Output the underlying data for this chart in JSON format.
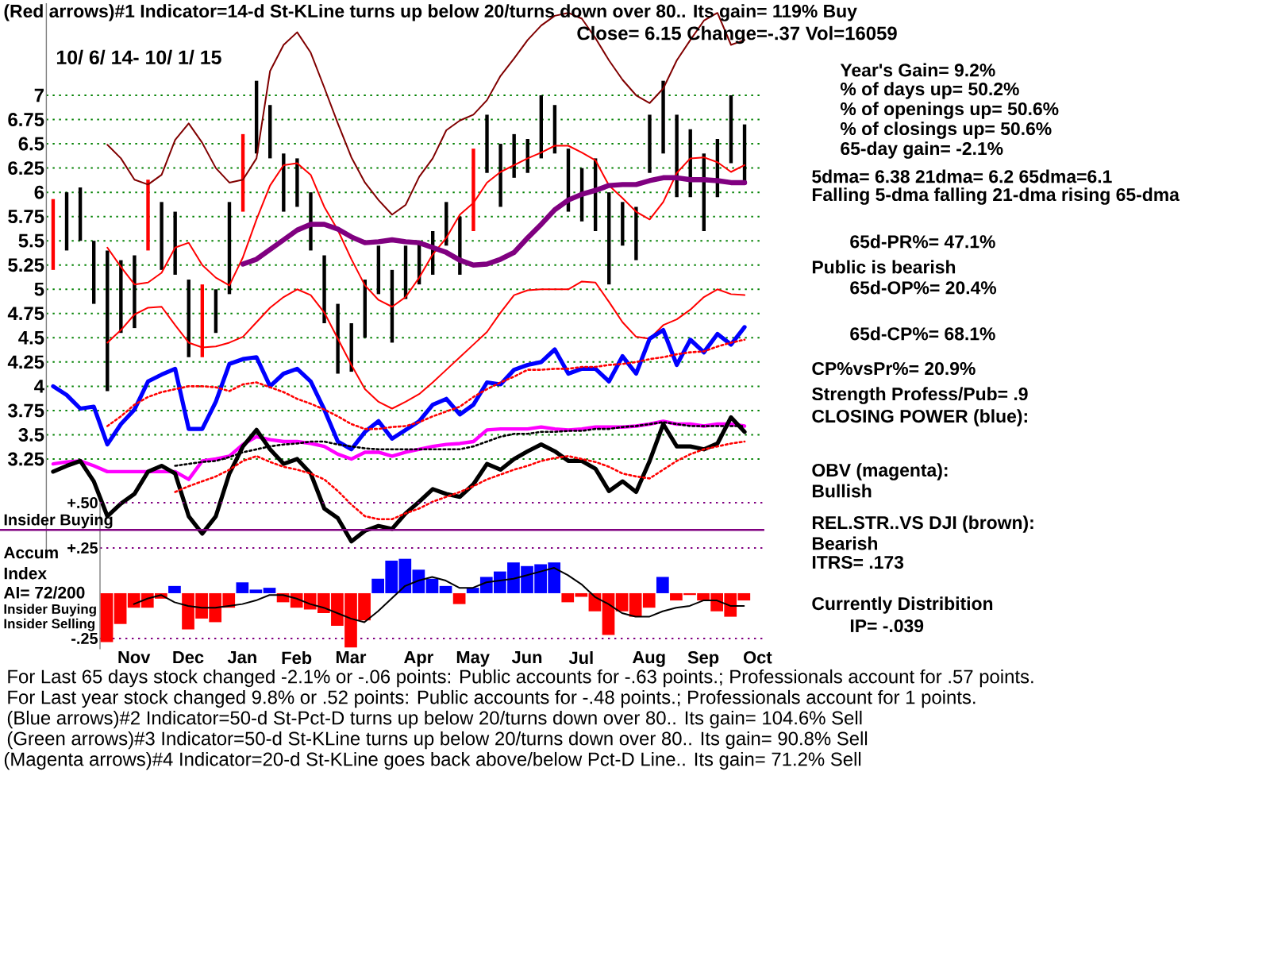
{
  "chart_data": [
    {
      "type": "bar",
      "title": "Close= 6.15 Change=-.37 Vol=16059",
      "subtitle": "10/ 6/ 14- 10/ 1/ 15",
      "categories": [
        null,
        null,
        null,
        null,
        null,
        null,
        null,
        null,
        null,
        null,
        null,
        null,
        null,
        null,
        null,
        null,
        null,
        null,
        null,
        null,
        null,
        null,
        null,
        null,
        null,
        null,
        null,
        null,
        null,
        null,
        null,
        null,
        null,
        null,
        null,
        null,
        null,
        null,
        null,
        null,
        null,
        null,
        null,
        null,
        null,
        null,
        null,
        null,
        null,
        null,
        null,
        null
      ],
      "ylim": [
        2.3,
        7.95
      ],
      "yticks": [
        7,
        6.75,
        6.5,
        6.25,
        6,
        5.75,
        5.5,
        5.25,
        5,
        4.75,
        4.5,
        4.25,
        4,
        3.75,
        3.5,
        3.25
      ],
      "grid": "y",
      "tick_labels": "y",
      "series": [
        {
          "colors": [
            "#ff0000",
            "#000000",
            "#000000",
            "#000000",
            "#000000",
            "#000000",
            "#000000",
            "#ff0000",
            "#000000",
            "#000000",
            "#000000",
            "#ff0000",
            "#000000",
            "#000000",
            "#ff0000",
            "#000000",
            "#000000",
            "#000000",
            "#000000",
            "#000000",
            "#000000",
            "#000000",
            "#000000",
            "#000000",
            "#000000",
            "#000000",
            "#000000",
            "#000000",
            "#000000",
            "#000000",
            "#000000",
            "#ff0000",
            "#000000",
            "#000000",
            "#000000",
            "#000000",
            "#000000",
            "#000000",
            "#000000",
            "#000000",
            "#000000",
            "#000000",
            "#000000",
            "#000000",
            "#000000",
            "#000000",
            "#000000",
            "#000000",
            "#000000",
            "#000000",
            "#000000",
            "#000000"
          ],
          "base": [
            5.2,
            5.4,
            5.5,
            4.85,
            3.95,
            4.55,
            4.6,
            5.4,
            5.2,
            5.15,
            4.3,
            4.3,
            4.55,
            4.95,
            5.8,
            6.4,
            6.35,
            5.8,
            5.85,
            5.4,
            4.65,
            4.13,
            4.15,
            4.5,
            4.95,
            4.45,
            4.9,
            5.05,
            5.15,
            5.45,
            5.15,
            5.6,
            6.2,
            5.85,
            6.15,
            6.2,
            6.35,
            6.4,
            5.8,
            5.7,
            5.6,
            5.05,
            5.45,
            5.3,
            6.2,
            6.4,
            5.95,
            5.95,
            5.6,
            5.95,
            6.3,
            6.1
          ],
          "values": [
            0.73,
            0.6,
            0.55,
            0.65,
            1.45,
            0.75,
            0.75,
            0.73,
            0.7,
            0.65,
            0.8,
            0.75,
            0.45,
            0.95,
            0.8,
            0.75,
            0.55,
            0.6,
            0.5,
            0.6,
            0.7,
            0.72,
            0.5,
            0.6,
            0.5,
            0.75,
            0.55,
            0.45,
            0.45,
            0.45,
            0.6,
            0.85,
            0.6,
            0.65,
            0.45,
            0.35,
            0.65,
            0.5,
            0.65,
            0.55,
            0.75,
            0.95,
            0.45,
            0.55,
            0.6,
            0.75,
            0.85,
            0.7,
            0.8,
            0.6,
            0.7,
            0.6
          ]
        },
        {
          "type": "line",
          "color": "#800000",
          "values": [
            null,
            null,
            null,
            null,
            6.49,
            6.35,
            6.13,
            6.08,
            6.18,
            6.54,
            6.71,
            6.51,
            6.25,
            6.1,
            6.13,
            6.35,
            7.25,
            7.52,
            7.65,
            7.44,
            7.08,
            6.71,
            6.36,
            6.1,
            5.92,
            5.77,
            5.87,
            6.16,
            6.35,
            6.64,
            6.74,
            6.8,
            6.95,
            7.2,
            7.38,
            7.57,
            7.72,
            7.82,
            7.85,
            7.79,
            7.59,
            7.36,
            7.16,
            7.0,
            6.92,
            7.07,
            7.36,
            7.57,
            7.77,
            7.85,
            7.52,
            7.57
          ]
        },
        {
          "type": "line",
          "color": "#ff0000",
          "values": [
            null,
            null,
            null,
            null,
            5.43,
            5.23,
            5.05,
            5.07,
            5.17,
            5.43,
            5.48,
            5.25,
            5.12,
            5.04,
            5.33,
            5.72,
            6.07,
            6.28,
            6.3,
            6.18,
            5.85,
            5.61,
            5.31,
            5.04,
            4.89,
            4.82,
            4.92,
            5.12,
            5.36,
            5.53,
            5.77,
            5.89,
            6.1,
            6.21,
            6.28,
            6.35,
            6.41,
            6.48,
            6.48,
            6.41,
            6.33,
            6.07,
            5.94,
            5.8,
            5.72,
            5.9,
            6.2,
            6.35,
            6.36,
            6.31,
            6.21,
            6.28
          ]
        },
        {
          "type": "line",
          "color": "#ff0000",
          "values": [
            null,
            null,
            null,
            null,
            4.45,
            4.58,
            4.74,
            4.81,
            4.82,
            4.63,
            4.45,
            4.4,
            4.41,
            4.45,
            4.51,
            4.66,
            4.81,
            4.92,
            5.0,
            4.94,
            4.76,
            4.49,
            4.22,
            3.97,
            3.84,
            3.77,
            3.84,
            3.92,
            4.04,
            4.17,
            4.3,
            4.43,
            4.56,
            4.76,
            4.94,
            4.99,
            5.0,
            5.0,
            5.0,
            5.08,
            5.07,
            4.87,
            4.66,
            4.51,
            4.49,
            4.63,
            4.69,
            4.79,
            4.92,
            5.0,
            4.95,
            4.94
          ]
        },
        {
          "type": "line",
          "color": "#800080",
          "values": [
            null,
            null,
            null,
            null,
            null,
            null,
            null,
            null,
            null,
            null,
            null,
            null,
            null,
            null,
            5.26,
            5.31,
            5.41,
            5.51,
            5.61,
            5.67,
            5.67,
            5.62,
            5.54,
            5.48,
            5.49,
            5.51,
            5.49,
            5.48,
            5.43,
            5.38,
            5.3,
            5.25,
            5.26,
            5.31,
            5.38,
            5.53,
            5.67,
            5.82,
            5.92,
            5.98,
            6.02,
            6.07,
            6.08,
            6.08,
            6.12,
            6.15,
            6.15,
            6.13,
            6.13,
            6.12,
            6.1,
            6.1
          ]
        },
        {
          "type": "line",
          "color": "#0000ff",
          "values": [
            4.0,
            3.91,
            3.77,
            3.79,
            3.4,
            3.61,
            3.76,
            4.05,
            4.12,
            4.18,
            3.56,
            3.56,
            3.84,
            4.23,
            4.28,
            4.3,
            4.0,
            4.13,
            4.18,
            4.05,
            3.76,
            3.43,
            3.35,
            3.53,
            3.64,
            3.46,
            3.55,
            3.64,
            3.81,
            3.87,
            3.71,
            3.81,
            4.04,
            4.02,
            4.17,
            4.22,
            4.25,
            4.38,
            4.13,
            4.18,
            4.18,
            4.05,
            4.31,
            4.13,
            4.49,
            4.58,
            4.22,
            4.48,
            4.35,
            4.54,
            4.43,
            4.61
          ]
        },
        {
          "type": "line",
          "color": "#ff00ff",
          "values": [
            3.2,
            3.22,
            3.23,
            3.18,
            3.12,
            3.12,
            3.12,
            3.12,
            3.12,
            3.12,
            3.04,
            3.23,
            3.25,
            3.28,
            3.4,
            3.48,
            3.45,
            3.43,
            3.43,
            3.41,
            3.38,
            3.3,
            3.25,
            3.32,
            3.32,
            3.28,
            3.32,
            3.35,
            3.38,
            3.4,
            3.41,
            3.43,
            3.55,
            3.56,
            3.56,
            3.56,
            3.58,
            3.56,
            3.55,
            3.56,
            3.58,
            3.58,
            3.58,
            3.59,
            3.61,
            3.64,
            3.61,
            3.61,
            3.59,
            3.61,
            3.61,
            3.59
          ]
        },
        {
          "type": "line",
          "color": "#000000",
          "values": [
            3.12,
            3.18,
            3.23,
            3.02,
            2.66,
            2.79,
            2.89,
            3.12,
            3.18,
            3.1,
            2.66,
            2.48,
            2.66,
            3.1,
            3.38,
            3.55,
            3.35,
            3.2,
            3.25,
            3.1,
            2.74,
            2.64,
            2.4,
            2.51,
            2.56,
            2.53,
            2.69,
            2.81,
            2.94,
            2.89,
            2.86,
            2.99,
            3.2,
            3.14,
            3.25,
            3.33,
            3.4,
            3.33,
            3.23,
            3.23,
            3.15,
            2.92,
            3.02,
            2.91,
            3.23,
            3.61,
            3.38,
            3.38,
            3.35,
            3.41,
            3.68,
            3.53
          ]
        },
        {
          "type": "line",
          "color": "#ff0000",
          "line_style": "dotted",
          "values": [
            null,
            null,
            null,
            null,
            3.59,
            3.69,
            3.81,
            3.89,
            3.94,
            3.97,
            4.0,
            4.0,
            3.99,
            3.95,
            4.02,
            4.04,
            3.99,
            3.94,
            3.87,
            3.82,
            3.76,
            3.69,
            3.61,
            3.56,
            3.56,
            3.58,
            3.59,
            3.63,
            3.69,
            3.74,
            3.79,
            3.89,
            3.97,
            4.04,
            4.1,
            4.17,
            4.17,
            4.18,
            4.18,
            4.2,
            4.2,
            4.22,
            4.23,
            4.25,
            4.28,
            4.3,
            4.33,
            4.35,
            4.36,
            4.41,
            4.45,
            4.48
          ]
        },
        {
          "type": "line",
          "color": "#000000",
          "line_style": "dotted",
          "values": [
            null,
            null,
            null,
            null,
            null,
            null,
            null,
            null,
            null,
            3.18,
            3.2,
            3.22,
            3.23,
            3.27,
            3.32,
            3.35,
            3.38,
            3.4,
            3.41,
            3.43,
            3.43,
            3.4,
            3.38,
            3.36,
            3.35,
            3.35,
            3.35,
            3.35,
            3.35,
            3.35,
            3.35,
            3.38,
            3.43,
            3.48,
            3.51,
            3.51,
            3.53,
            3.53,
            3.54,
            3.54,
            3.56,
            3.56,
            3.58,
            3.59,
            3.61,
            3.63,
            3.61,
            3.59,
            3.59,
            3.59,
            3.59,
            3.59
          ]
        },
        {
          "type": "line",
          "color": "#ff0000",
          "line_style": "dotted",
          "values": [
            null,
            null,
            null,
            null,
            null,
            null,
            null,
            null,
            null,
            2.91,
            2.97,
            3.02,
            3.07,
            3.14,
            3.23,
            3.28,
            3.22,
            3.17,
            3.14,
            3.1,
            3.04,
            2.92,
            2.78,
            2.66,
            2.63,
            2.63,
            2.69,
            2.74,
            2.81,
            2.86,
            2.91,
            2.97,
            3.04,
            3.09,
            3.14,
            3.18,
            3.23,
            3.26,
            3.28,
            3.25,
            3.22,
            3.17,
            3.1,
            3.07,
            3.05,
            3.14,
            3.23,
            3.3,
            3.35,
            3.38,
            3.41,
            3.43
          ]
        }
      ],
      "annotations": [
        "(Red arrows)#1 Indicator=14-d St-KLine turns up below 20/turns down over 80.. Its gain= 119% Buy",
        "Year's Gain= 9.2%",
        "% of days up= 50.2%",
        "% of openings up= 50.6%",
        "% of closings up= 50.6%",
        "65-day gain= -2.1%",
        "5dma= 6.38 21dma= 6.2 65dma=6.1",
        "Falling 5-dma falling 21-dma rising 65-dma",
        "65d-PR%= 47.1%",
        "Public is bearish",
        "65d-OP%= 20.4%",
        "65d-CP%= 68.1%",
        "CP%vsPr%= 20.9%",
        "Strength Profess/Pub= .9",
        "CLOSING POWER (blue):",
        "OBV (magenta):",
        "Bullish",
        "REL.STR..VS DJI (brown):",
        "Bearish",
        "ITRS= .173",
        "Currently Distribition",
        "IP= -.039",
        "For Last 65 days stock changed -2.1% or -.06 points: Public accounts for -.63 points.; Professionals account for .57 points.",
        "For Last year stock changed 9.8% or .52 points: Public accounts for -.48 points.; Professionals account for 1 points.",
        "(Blue arrows)#2 Indicator=50-d St-Pct-D turns up below 20/turns down over 80.. Its gain= 104.6% Sell",
        "(Green arrows)#3 Indicator=50-d St-KLine turns up below 20/turns down over 80.. Its gain= 90.8% Sell",
        "(Magenta arrows)#4 Indicator=20-d St-KLine goes back above/below Pct-D Line.. Its gain= 71.2% Sell"
      ]
    },
    {
      "type": "bar",
      "ylabel": "Accum Index",
      "categories": [
        null,
        null,
        "Nov",
        null,
        null,
        null,
        "Dec",
        null,
        null,
        null,
        "Jan",
        null,
        null,
        null,
        "Feb",
        null,
        null,
        null,
        "Mar",
        null,
        null,
        null,
        null,
        "Apr",
        null,
        null,
        null,
        "May",
        null,
        null,
        null,
        "Jun",
        null,
        null,
        null,
        "Jul",
        null,
        null,
        null,
        null,
        "Aug",
        null,
        null,
        null,
        "Sep",
        null,
        null,
        null,
        "Oct"
      ],
      "ylim": [
        -0.31,
        0.5
      ],
      "yticks": [
        {
          "value": 0.5,
          "label": "+.50"
        },
        {
          "value": 0.25,
          "label": "+.25"
        },
        {
          "value": -0.25,
          "label": "-.25"
        }
      ],
      "grid": "y",
      "series": [
        {
          "colors": [
            "#ff0000",
            "#ff0000",
            "#ff0000",
            "#ff0000",
            "#ff0000",
            "#0000ff",
            "#ff0000",
            "#ff0000",
            "#ff0000",
            "#ff0000",
            "#0000ff",
            "#0000ff",
            "#0000ff",
            "#ff0000",
            "#ff0000",
            "#ff0000",
            "#ff0000",
            "#ff0000",
            "#ff0000",
            "#ff0000",
            "#0000ff",
            "#0000ff",
            "#0000ff",
            "#0000ff",
            "#0000ff",
            "#0000ff",
            "#ff0000",
            "#0000ff",
            "#0000ff",
            "#0000ff",
            "#0000ff",
            "#0000ff",
            "#0000ff",
            "#0000ff",
            "#ff0000",
            "#ff0000",
            "#ff0000",
            "#ff0000",
            "#ff0000",
            "#ff0000",
            "#ff0000",
            "#0000ff",
            "#ff0000",
            "#ff0000",
            "#ff0000",
            "#ff0000",
            "#ff0000",
            "#ff0000",
            null
          ],
          "values": [
            -0.27,
            -0.17,
            -0.08,
            -0.08,
            -0.03,
            0.04,
            -0.2,
            -0.14,
            -0.16,
            -0.08,
            0.06,
            0.02,
            0.03,
            -0.05,
            -0.08,
            -0.09,
            -0.11,
            -0.18,
            -0.3,
            -0.15,
            0.08,
            0.18,
            0.19,
            0.13,
            0.08,
            0.04,
            -0.06,
            0.03,
            0.09,
            0.12,
            0.17,
            0.15,
            0.16,
            0.17,
            -0.05,
            -0.02,
            -0.1,
            -0.23,
            -0.1,
            -0.13,
            -0.08,
            0.09,
            -0.04,
            -0.01,
            -0.04,
            -0.1,
            -0.13,
            -0.04,
            null
          ]
        },
        {
          "type": "line",
          "color": "#000000",
          "values": [
            null,
            null,
            -0.06,
            -0.03,
            -0.01,
            -0.05,
            -0.07,
            -0.08,
            -0.08,
            -0.07,
            -0.06,
            -0.04,
            -0.01,
            -0.01,
            -0.03,
            -0.06,
            -0.08,
            -0.11,
            -0.14,
            -0.16,
            -0.1,
            -0.03,
            0.04,
            0.07,
            0.09,
            0.07,
            0.03,
            0.03,
            0.06,
            0.07,
            0.08,
            0.1,
            0.12,
            0.14,
            0.1,
            0.05,
            -0.02,
            -0.06,
            -0.11,
            -0.13,
            -0.13,
            -0.1,
            -0.08,
            -0.07,
            -0.04,
            -0.04,
            -0.07,
            -0.07,
            null
          ]
        }
      ],
      "ref_lines": [
        {
          "axis": "y",
          "value": 0.35,
          "label": "Insider Buying",
          "color": "#800080"
        }
      ],
      "annotations": [
        "AI= 72/200",
        "Insider Buying",
        "Insider Selling"
      ]
    }
  ]
}
